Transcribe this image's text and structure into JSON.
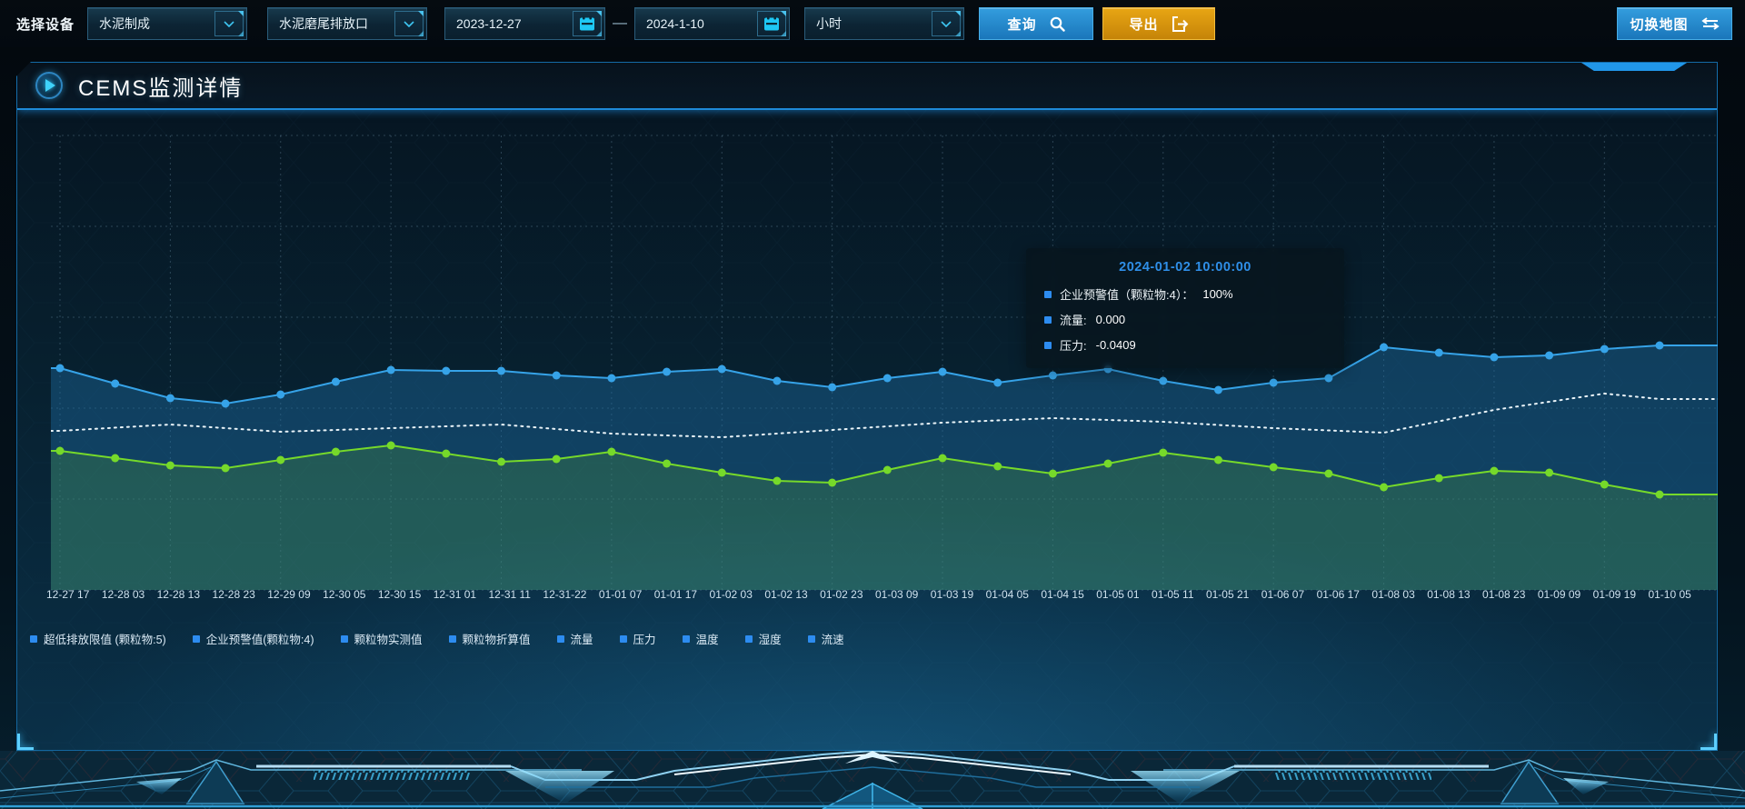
{
  "toolbar": {
    "device_label": "选择设备",
    "device_group_value": "水泥制成",
    "outlet_value": "水泥磨尾排放口",
    "date_start": "2023-12-27",
    "date_separator": "—",
    "date_end": "2024-1-10",
    "interval_value": "小时",
    "query_label": "查询",
    "export_label": "导出",
    "switch_map_label": "切换地图"
  },
  "panel": {
    "title": "CEMS监测详情"
  },
  "tooltip": {
    "title": "2024-01-02 10:00:00",
    "items": [
      {
        "label": "企业预警值（颗粒物:4）：",
        "value": "100%"
      },
      {
        "label": "流量:",
        "value": "0.000"
      },
      {
        "label": "压力:",
        "value": "-0.0409"
      }
    ]
  },
  "legend_items": [
    "超低排放限值 (颗粒物:5)",
    "企业预警值(颗粒物:4)",
    "颗粒物实测值",
    "颗粒物折算值",
    "流量",
    "压力",
    "温度",
    "湿度",
    "流速"
  ],
  "colors": {
    "accent_blue": "#2196e8",
    "button_blue": "#1f86cc",
    "button_orange": "#d9940f",
    "calendar_icon": "#1ec8f5",
    "legend_marker": "#2d8cf0",
    "tooltip_title": "#2f8fe8",
    "line_blue": "#36a3e8",
    "line_green": "#76d92a",
    "line_white": "#e9f3f8"
  },
  "chart_data": {
    "type": "line",
    "title": "",
    "xlabel": "",
    "ylabel": "",
    "grid": "dashed",
    "legend_position": "bottom",
    "x_labels": [
      "12-27 17",
      "12-28 03",
      "12-28 13",
      "12-28 23",
      "12-29 09",
      "12-30 05",
      "12-30 15",
      "12-31 01",
      "12-31 11",
      "12-31-22",
      "01-01 07",
      "01-01 17",
      "01-02 03",
      "01-02 13",
      "01-02 23",
      "01-03 09",
      "01-03 19",
      "01-04 05",
      "01-04 15",
      "01-05 01",
      "01-05 11",
      "01-05 21",
      "01-06 07",
      "01-06 17",
      "01-08 03",
      "01-08 13",
      "01-08 23",
      "01-09 09",
      "01-09 19",
      "01-10 05"
    ],
    "y_unit": "percent-of-plot-height (no visible y axis)",
    "series": [
      {
        "name": "blue-line",
        "color": "#36a3e8",
        "marker": true,
        "x_index_step": 1,
        "area": "rgba(28,108,162,0.42)",
        "values": [
          48.8,
          45.4,
          42.2,
          41.0,
          43.0,
          45.8,
          48.4,
          48.2,
          48.2,
          47.2,
          46.6,
          48.0,
          48.6,
          46.0,
          44.6,
          46.6,
          48.0,
          45.6,
          47.2,
          48.6,
          46.0,
          44.0,
          45.6,
          46.6,
          53.4,
          52.2,
          51.2,
          51.6,
          53.0,
          53.8
        ]
      },
      {
        "name": "white-dotted-line",
        "color": "#e9f3f8",
        "marker": false,
        "x_index_step": 2,
        "dash": "2 5",
        "values": [
          35.0,
          36.4,
          34.8,
          35.6,
          36.4,
          34.4,
          33.6,
          35.2,
          36.8,
          37.8,
          37.0,
          35.6,
          34.6,
          39.6,
          43.2,
          42.0
        ]
      },
      {
        "name": "green-line",
        "color": "#76d92a",
        "marker": true,
        "x_index_step": 1,
        "area": "rgba(98,178,44,0.22)",
        "values": [
          30.6,
          29.0,
          27.4,
          26.8,
          28.6,
          30.4,
          31.8,
          30.0,
          28.2,
          28.8,
          30.4,
          27.8,
          25.8,
          24.0,
          23.6,
          26.4,
          29.0,
          27.2,
          25.6,
          27.8,
          30.2,
          28.6,
          27.0,
          25.6,
          22.6,
          24.6,
          26.2,
          25.8,
          23.2,
          21.0
        ]
      }
    ]
  }
}
